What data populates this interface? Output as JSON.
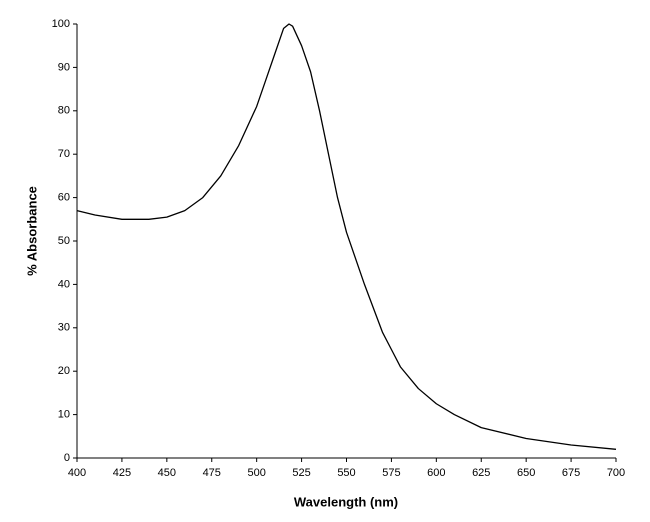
{
  "chart_data": {
    "type": "line",
    "x_label": "Wavelength (nm)",
    "y_label": "% Absorbance",
    "x": [
      400,
      410,
      425,
      440,
      450,
      460,
      470,
      480,
      490,
      500,
      505,
      510,
      515,
      518,
      520,
      525,
      530,
      535,
      540,
      545,
      550,
      560,
      570,
      575,
      580,
      590,
      600,
      610,
      625,
      650,
      675,
      700
    ],
    "values": [
      57,
      56,
      55,
      55,
      55.5,
      57,
      60,
      65,
      72,
      81,
      87,
      93,
      99,
      100,
      99.5,
      95,
      89,
      80,
      70,
      60,
      52,
      40,
      29,
      25,
      21,
      16,
      12.5,
      10,
      7,
      4.5,
      3,
      2
    ],
    "color": "#000000",
    "xlim": [
      400,
      700
    ],
    "xticks": [
      400,
      425,
      450,
      475,
      500,
      525,
      550,
      575,
      600,
      625,
      650,
      675,
      700
    ],
    "ylim": [
      0,
      100
    ],
    "yticks": [
      0,
      10,
      20,
      30,
      40,
      50,
      60,
      70,
      80,
      90,
      100
    ],
    "grid": false
  }
}
